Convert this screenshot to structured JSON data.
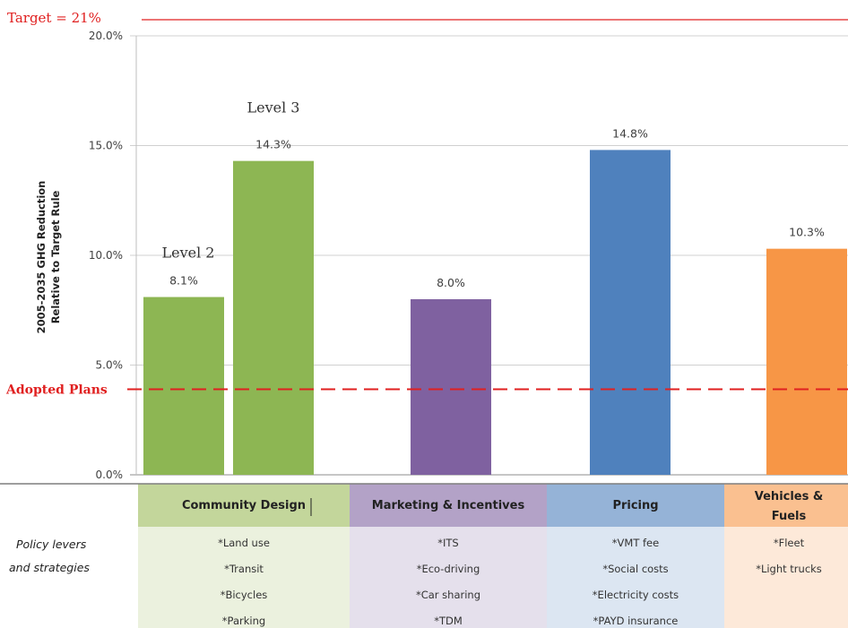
{
  "chart_data": {
    "type": "bar",
    "ylabel_line1": "2005-2035 GHG Reduction",
    "ylabel_line2": "Relative to Target Rule",
    "yticks": [
      "0.0%",
      "5.0%",
      "10.0%",
      "15.0%",
      "20.0%"
    ],
    "ylim": [
      0,
      20
    ],
    "grid": true,
    "bars": [
      {
        "value": 8.1,
        "label": "8.1%",
        "color": "#8db653",
        "group": "Community Design",
        "annotation": "Level 2"
      },
      {
        "value": 14.3,
        "label": "14.3%",
        "color": "#8db653",
        "group": "Community Design",
        "annotation": "Level 3"
      },
      {
        "value": 8.0,
        "label": "8.0%",
        "color": "#7f61a0",
        "group": "Marketing & Incentives"
      },
      {
        "value": 14.8,
        "label": "14.8%",
        "color": "#4f81bd",
        "group": "Pricing"
      },
      {
        "value": 10.3,
        "label": "10.3%",
        "color": "#f79646",
        "group": "Vehicles & Fuels"
      }
    ],
    "reference_lines": [
      {
        "label": "Target = 21%",
        "value": 21,
        "color": "#e02020",
        "style": "solid"
      },
      {
        "label": "Adopted Plans",
        "value": 3.9,
        "color": "#e02020",
        "style": "dashed"
      }
    ]
  },
  "policy_table": {
    "side_label_line1": "Policy levers",
    "side_label_line2": "and strategies",
    "categories": [
      {
        "name": "Community Design",
        "header_color": "#c3d69b",
        "body_color": "#ebf1de",
        "items": [
          "*Land use",
          "*Transit",
          "*Bicycles",
          "*Parking"
        ]
      },
      {
        "name": "Marketing & Incentives",
        "header_color": "#b3a2c7",
        "body_color": "#e5e0ec",
        "items": [
          "*ITS",
          "*Eco-driving",
          "*Car sharing",
          "*TDM"
        ]
      },
      {
        "name": "Pricing",
        "header_color": "#95b3d7",
        "body_color": "#dce6f2",
        "items": [
          "*VMT fee",
          "*Social costs",
          "*Electricity costs",
          "*PAYD insurance"
        ]
      },
      {
        "name_line1": "Vehicles &",
        "name_line2": "Fuels",
        "header_color": "#fac090",
        "body_color": "#fde9d9",
        "items": [
          "*Fleet",
          "*Light trucks"
        ]
      }
    ]
  }
}
